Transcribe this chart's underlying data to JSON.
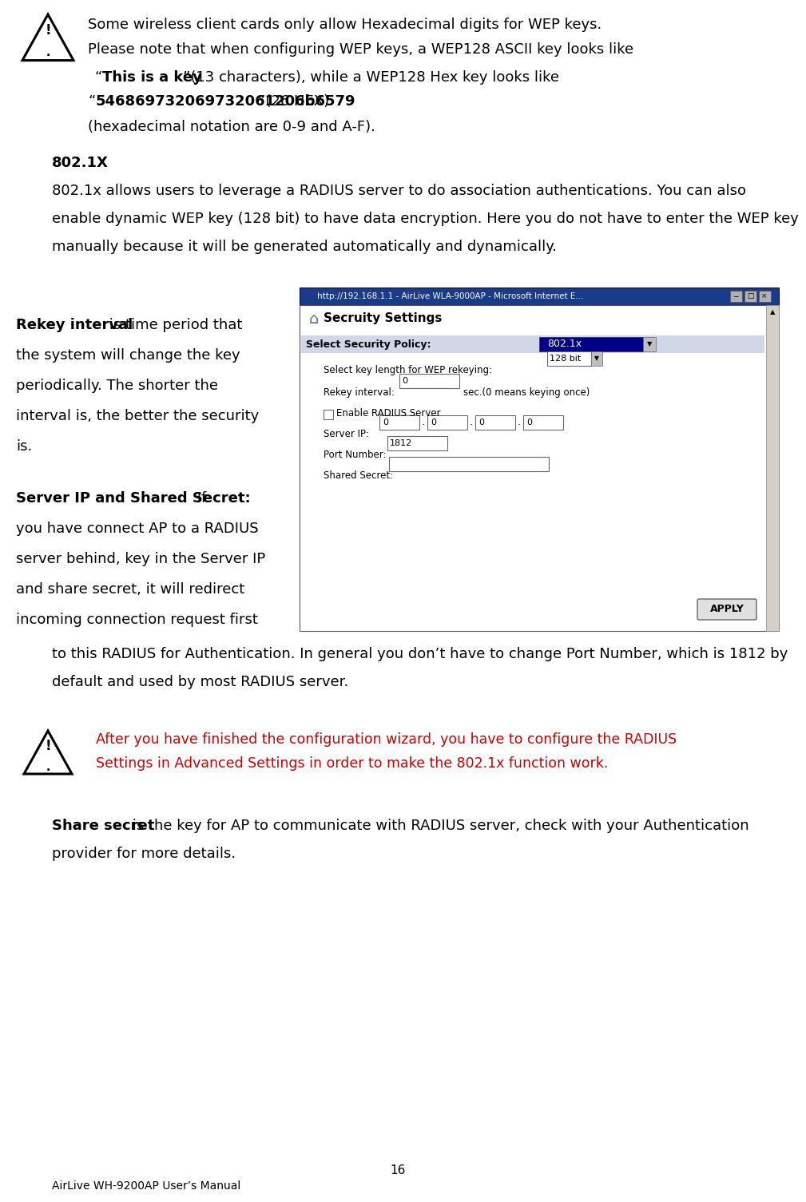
{
  "bg_color": "#ffffff",
  "text_color": "#000000",
  "warning_color": "#cc0000",
  "page_number": "16",
  "footer_text": "AirLive WH-9200AP User’s Manual",
  "warn1_line1": "Some wireless client cards only allow Hexadecimal digits for WEP keys.",
  "warn1_line2": "Please note that when configuring WEP keys, a WEP128 ASCII key looks like",
  "warn1_bold1": "This is a key",
  "warn1_after1": "”(13 characters), while a WEP128 Hex key looks like",
  "warn1_bold2": "546869732069732061206b6579",
  "warn1_after2": "”(26 HEX)",
  "warn1_line5": "(hexadecimal notation are 0-9 and A-F).",
  "head802": "802.1X",
  "para1": "802.1x allows users to leverage a RADIUS server to do association authentications. You can also",
  "para2": "enable dynamic WEP key (128 bit) to have data encryption. Here you do not have to enter the WEP key",
  "para3": "manually because it will be generated automatically and dynamically.",
  "rekey_bold": "Rekey interval",
  "rekey_rest": " is time period that",
  "rekey2": "the system will change the key",
  "rekey3": "periodically. The shorter the",
  "rekey4": "interval is, the better the security",
  "rekey5": "is.",
  "server_bold": "Server IP and Shared Secret:",
  "server_rest": " If",
  "server2": "you have connect AP to a RADIUS",
  "server3": "server behind, key in the Server IP",
  "server4": "and share secret, it will redirect",
  "server5": "incoming connection request first",
  "after1": "to this RADIUS for Authentication. In general you don’t have to change Port Number, which is 1812 by",
  "after2": "default and used by most RADIUS server.",
  "warn2_line1": "After you have finished the configuration wizard, you have to configure the RADIUS",
  "warn2_line2": "Settings in Advanced Settings in order to make the 802.1x function work.",
  "share_bold": "Share secret",
  "share_rest": " is the key for AP to communicate with RADIUS server, check with your Authentication",
  "share2": "provider for more details.",
  "sc_title": "http://192.168.1.1 - AirLive WLA-9000AP - Microsoft Internet E...",
  "sc_heading": "Secruity Settings",
  "sc_label1": "Select Security Policy:",
  "sc_dd1": "802.1x",
  "sc_label2": "Select key length for WEP rekeying:",
  "sc_dd2": "128 bit",
  "sc_label3": "Rekey interval:",
  "sc_field3": "0",
  "sc_suffix3": "sec.(0 means keying once)",
  "sc_cb1": "Enable RADIUS Server",
  "sc_label4": "Server IP:",
  "sc_ip": [
    "0",
    "0",
    "0",
    "0"
  ],
  "sc_label5": "Port Number:",
  "sc_port": "1812",
  "sc_label6": "Shared Secret:",
  "sc_apply": "APPLY",
  "fs": 13.0,
  "fs_sc": 9.0
}
